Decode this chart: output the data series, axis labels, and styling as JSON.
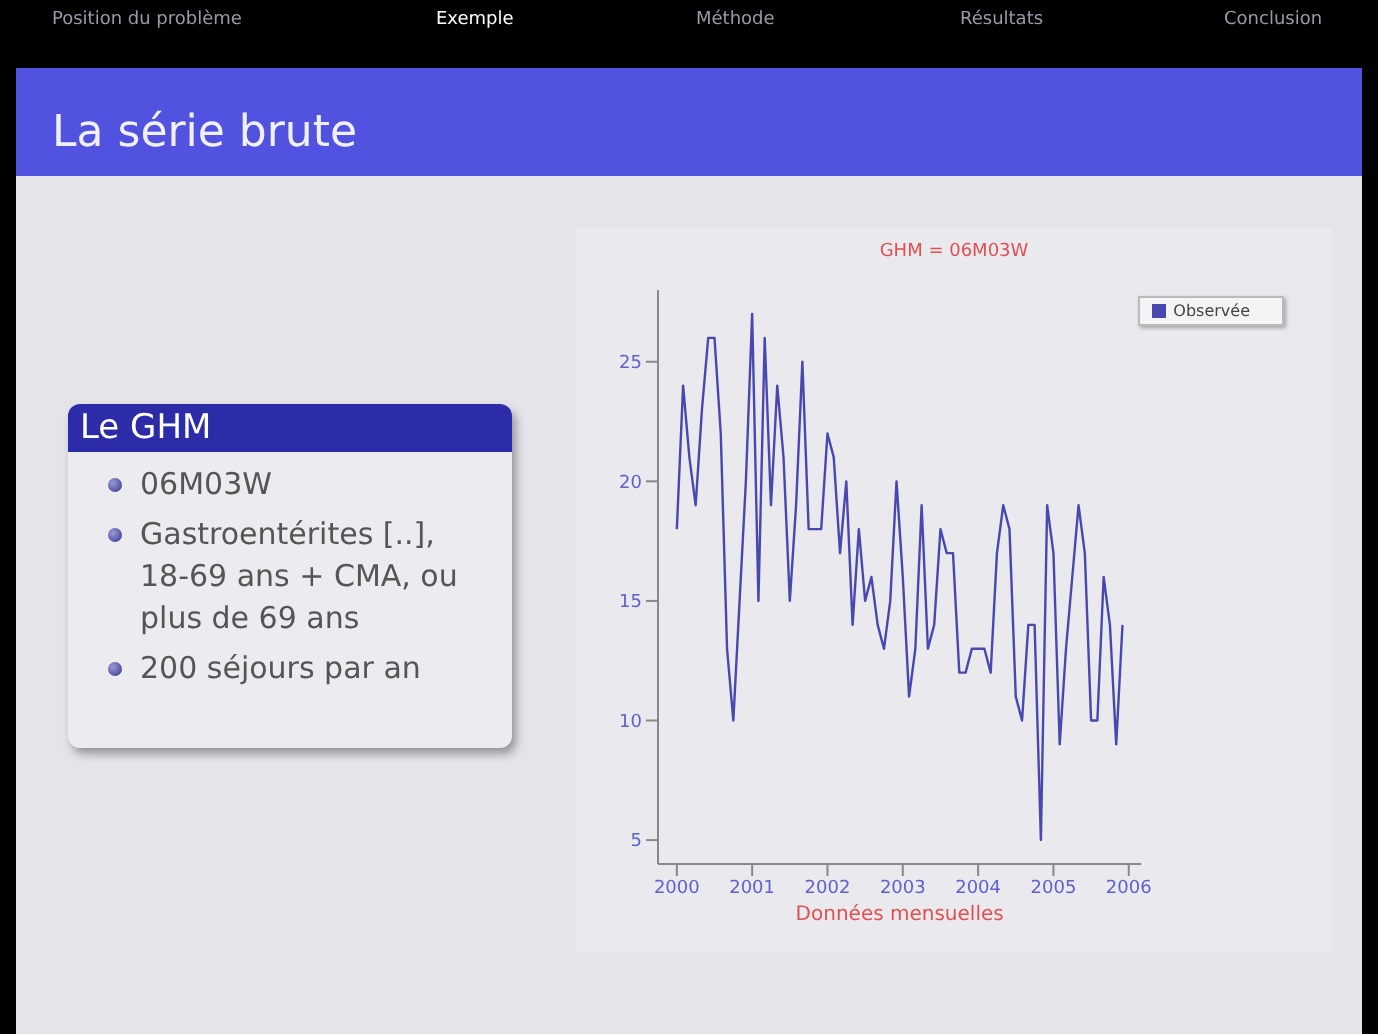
{
  "chart_data": {
    "type": "line",
    "title": "GHM = 06M03W",
    "xlabel": "Données mensuelles",
    "annotations": [
      "Position du problème",
      "Exemple",
      "Méthode",
      "Résultats",
      "Conclusion",
      "La série brute",
      "Le GHM",
      "06M03W",
      "Gastroentérites [..], 18-69 ans + CMA, ou plus de 69 ans",
      "200 séjours par an"
    ],
    "x": [
      "2000-01",
      "2000-02",
      "2000-03",
      "2000-04",
      "2000-05",
      "2000-06",
      "2000-07",
      "2000-08",
      "2000-09",
      "2000-10",
      "2000-11",
      "2000-12",
      "2001-01",
      "2001-02",
      "2001-03",
      "2001-04",
      "2001-05",
      "2001-06",
      "2001-07",
      "2001-08",
      "2001-09",
      "2001-10",
      "2001-11",
      "2001-12",
      "2002-01",
      "2002-02",
      "2002-03",
      "2002-04",
      "2002-05",
      "2002-06",
      "2002-07",
      "2002-08",
      "2002-09",
      "2002-10",
      "2002-11",
      "2002-12",
      "2003-01",
      "2003-02",
      "2003-03",
      "2003-04",
      "2003-05",
      "2003-06",
      "2003-07",
      "2003-08",
      "2003-09",
      "2003-10",
      "2003-11",
      "2003-12",
      "2004-01",
      "2004-02",
      "2004-03",
      "2004-04",
      "2004-05",
      "2004-06",
      "2004-07",
      "2004-08",
      "2004-09",
      "2004-10",
      "2004-11",
      "2004-12",
      "2005-01",
      "2005-02",
      "2005-03",
      "2005-04",
      "2005-05",
      "2005-06",
      "2005-07",
      "2005-08",
      "2005-09",
      "2005-10",
      "2005-11",
      "2005-12"
    ],
    "series": [
      {
        "name": "Observée",
        "color": "#4848b0",
        "values": [
          18,
          24,
          21,
          19,
          23,
          26,
          26,
          22,
          13,
          10,
          15,
          20,
          27,
          15,
          26,
          19,
          24,
          21,
          15,
          19,
          25,
          18,
          18,
          18,
          22,
          21,
          17,
          20,
          14,
          18,
          15,
          16,
          14,
          13,
          15,
          20,
          16,
          11,
          13,
          19,
          13,
          14,
          18,
          17,
          17,
          12,
          12,
          13,
          13,
          13,
          12,
          17,
          19,
          18,
          11,
          10,
          14,
          14,
          5,
          19,
          17,
          9,
          13,
          16,
          19,
          17,
          10,
          10,
          16,
          14,
          9,
          14
        ]
      }
    ],
    "xlim": [
      "1999-10",
      "2006-03"
    ],
    "xticks": [
      "2000",
      "2001",
      "2002",
      "2003",
      "2004",
      "2005",
      "2006"
    ],
    "ylim": [
      4,
      28
    ],
    "yticks": [
      5,
      10,
      15,
      20,
      25
    ],
    "grid": false,
    "legend": "top right",
    "marker": "none",
    "line_style": "solid"
  }
}
